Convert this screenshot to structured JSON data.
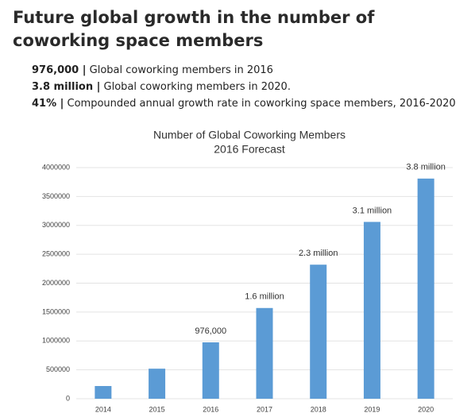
{
  "header": {
    "title": "Future global growth in the number of coworking space members"
  },
  "stats": [
    {
      "figure": "976,000 |",
      "text": "Global coworking members in 2016"
    },
    {
      "figure": "3.8 million |",
      "text": "Global coworking members in 2020."
    },
    {
      "figure": "41% |",
      "text": "Compounded annual growth rate in coworking space members, 2016-2020"
    }
  ],
  "chart_data": {
    "type": "bar",
    "title": "Number of Global Coworking Members",
    "subtitle": "2016 Forecast",
    "categories": [
      "2014",
      "2015",
      "2016",
      "2017",
      "2018",
      "2019",
      "2020"
    ],
    "values": [
      220000,
      520000,
      976000,
      1570000,
      2320000,
      3060000,
      3810000
    ],
    "value_labels": [
      null,
      null,
      "976,000",
      "1.6 million",
      "2.3 million",
      "3.1 million",
      "3.8 million"
    ],
    "color": "#5b9bd5",
    "ylim": [
      0,
      4000000
    ],
    "yticks": [
      0,
      500000,
      1000000,
      1500000,
      2000000,
      2500000,
      3000000,
      3500000,
      4000000
    ],
    "grid": true
  }
}
